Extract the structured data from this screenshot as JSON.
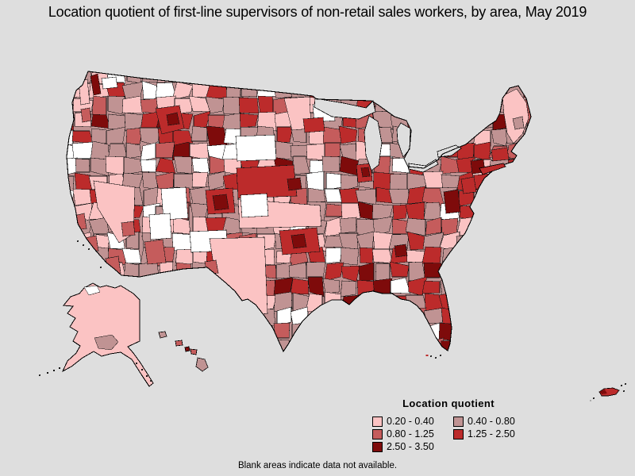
{
  "title": "Location quotient of first-line supervisors of non-retail sales workers, by area, May 2019",
  "legend": {
    "title": "Location quotient",
    "items": [
      {
        "label": "0.20 - 0.40",
        "color": "#FBC3C3"
      },
      {
        "label": "0.40 - 0.80",
        "color": "#C09393"
      },
      {
        "label": "0.80 - 1.25",
        "color": "#C55C5C"
      },
      {
        "label": "1.25 - 2.50",
        "color": "#BC2B2B"
      },
      {
        "label": "2.50 - 3.50",
        "color": "#7E0B0B"
      }
    ]
  },
  "footnote": "Blank areas indicate data not available.",
  "map": {
    "background": "#DEDEDE",
    "blank_color": "#FFFFFF",
    "border_color": "#000000",
    "regions": [
      "Contiguous United States",
      "Alaska",
      "Hawaii",
      "Puerto Rico"
    ]
  },
  "chart_data": {
    "type": "choropleth",
    "measure": "Location quotient",
    "bins": [
      "0.20 - 0.40",
      "0.40 - 0.80",
      "0.80 - 1.25",
      "1.25 - 2.50",
      "2.50 - 3.50"
    ],
    "note": "Blank areas indicate data not available."
  }
}
